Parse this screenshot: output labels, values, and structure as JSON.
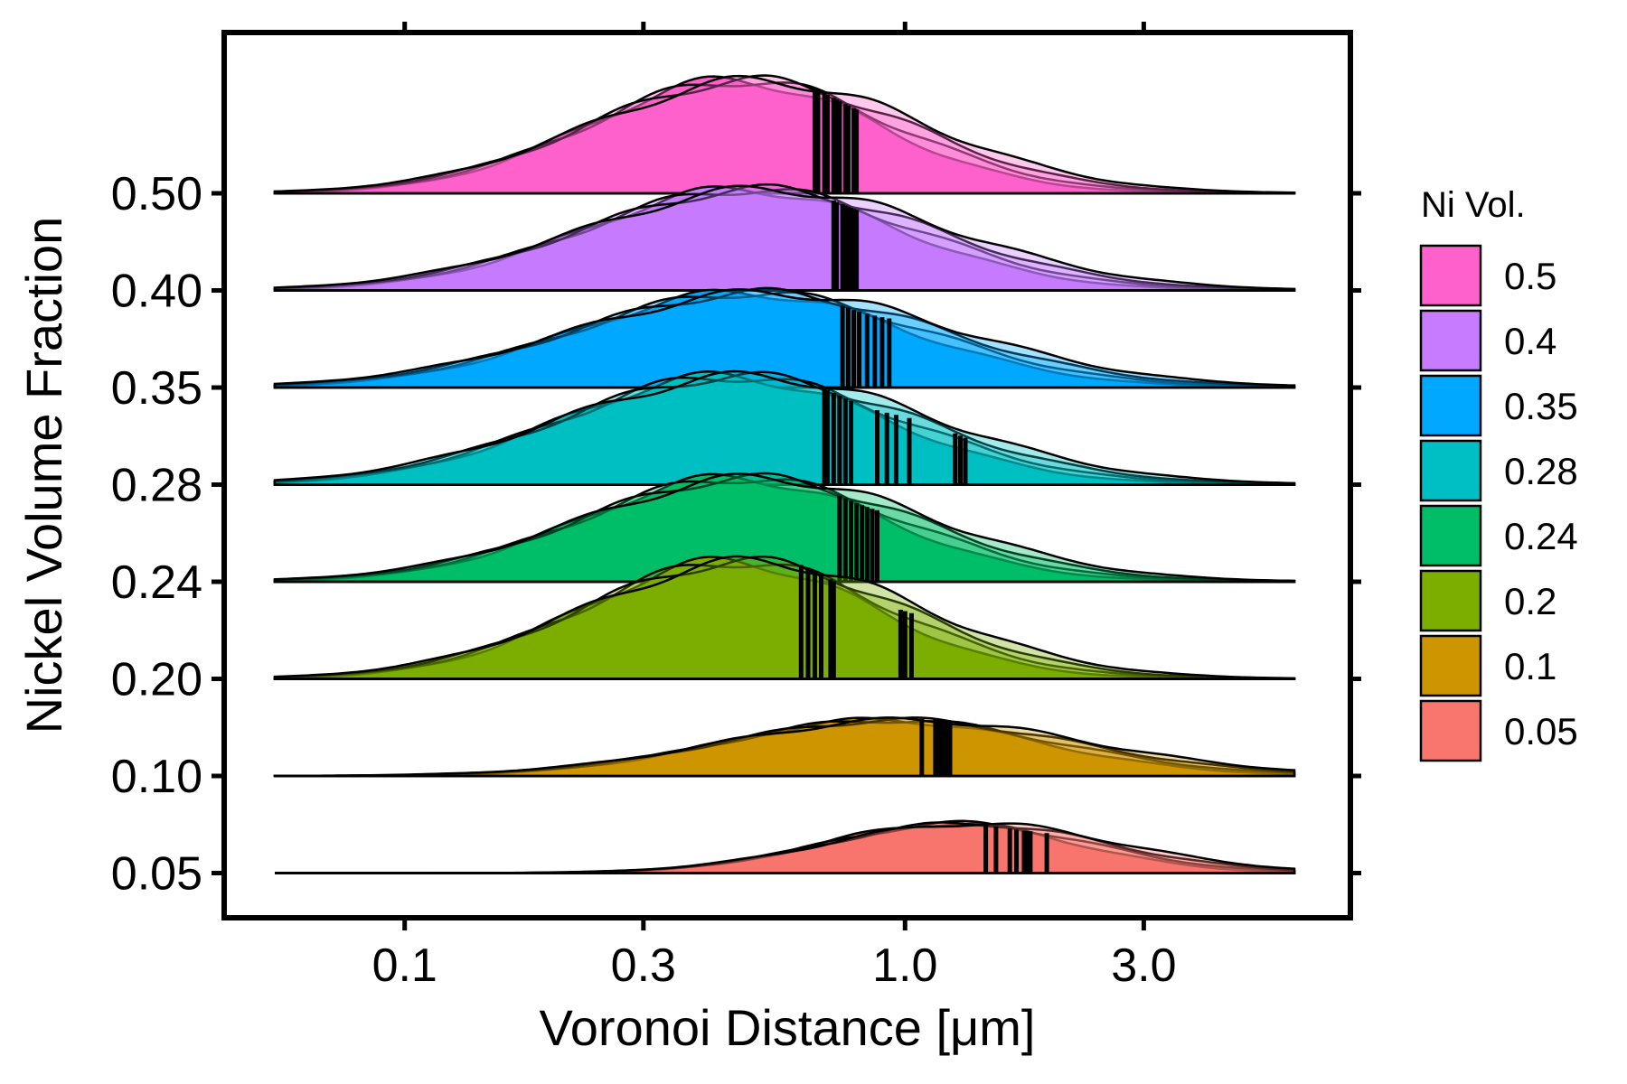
{
  "chart_data": {
    "type": "area",
    "subtype": "ridgeline",
    "xlabel": "Voronoi Distance [μm]",
    "ylabel": "Nickel Volume Fraction",
    "x_scale": "log",
    "x_ticks": [
      {
        "value": 0.1,
        "label": "0.1"
      },
      {
        "value": 0.3,
        "label": "0.3"
      },
      {
        "value": 1.0,
        "label": "1.0"
      },
      {
        "value": 3.0,
        "label": "3.0"
      }
    ],
    "x_range": [
      0.055,
      6.0
    ],
    "legend": {
      "title": "Ni Vol.",
      "position": "right"
    },
    "grid": false,
    "series": [
      {
        "legend_label": "0.05",
        "y_label": "0.05",
        "color": "#F8766D",
        "peak": 1.3,
        "spread": 0.62,
        "height": 0.55,
        "means": [
          1.45,
          1.52,
          1.62,
          1.67,
          1.73,
          1.75,
          1.78,
          1.92
        ]
      },
      {
        "legend_label": "0.1",
        "y_label": "0.10",
        "color": "#CD9600",
        "peak": 0.95,
        "spread": 0.78,
        "height": 0.62,
        "means": [
          1.08,
          1.15,
          1.16,
          1.17,
          1.18,
          1.19,
          1.2,
          1.21,
          1.22,
          1.23
        ]
      },
      {
        "legend_label": "0.2",
        "y_label": "0.20",
        "color": "#7CAE00",
        "peak": 0.47,
        "spread": 0.72,
        "height": 1.3,
        "means": [
          0.62,
          0.64,
          0.66,
          0.68,
          0.71,
          0.72,
          0.98,
          1.0,
          1.03
        ]
      },
      {
        "legend_label": "0.24",
        "y_label": "0.24",
        "color": "#00BE67",
        "peak": 0.48,
        "spread": 0.75,
        "height": 1.15,
        "means": [
          0.74,
          0.76,
          0.78,
          0.8,
          0.82,
          0.84,
          0.86,
          0.88
        ]
      },
      {
        "legend_label": "0.28",
        "y_label": "0.28",
        "color": "#00BFC4",
        "peak": 0.46,
        "spread": 0.8,
        "height": 1.2,
        "means": [
          0.69,
          0.7,
          0.72,
          0.74,
          0.76,
          0.78,
          0.88,
          0.92,
          0.96,
          1.02,
          1.26,
          1.29,
          1.32
        ]
      },
      {
        "legend_label": "0.35",
        "y_label": "0.35",
        "color": "#00A9FF",
        "peak": 0.5,
        "spread": 0.82,
        "height": 1.05,
        "means": [
          0.75,
          0.77,
          0.79,
          0.81,
          0.84,
          0.87,
          0.9,
          0.93
        ]
      },
      {
        "legend_label": "0.4",
        "y_label": "0.40",
        "color": "#C77CFF",
        "peak": 0.5,
        "spread": 0.78,
        "height": 1.12,
        "means": [
          0.72,
          0.73,
          0.75,
          0.76,
          0.77,
          0.78,
          0.79,
          0.8
        ]
      },
      {
        "legend_label": "0.5",
        "y_label": "0.50",
        "color": "#FF61CC",
        "peak": 0.48,
        "spread": 0.72,
        "height": 1.25,
        "means": [
          0.66,
          0.67,
          0.69,
          0.7,
          0.72,
          0.73,
          0.74,
          0.76,
          0.77,
          0.79,
          0.8
        ]
      }
    ]
  }
}
